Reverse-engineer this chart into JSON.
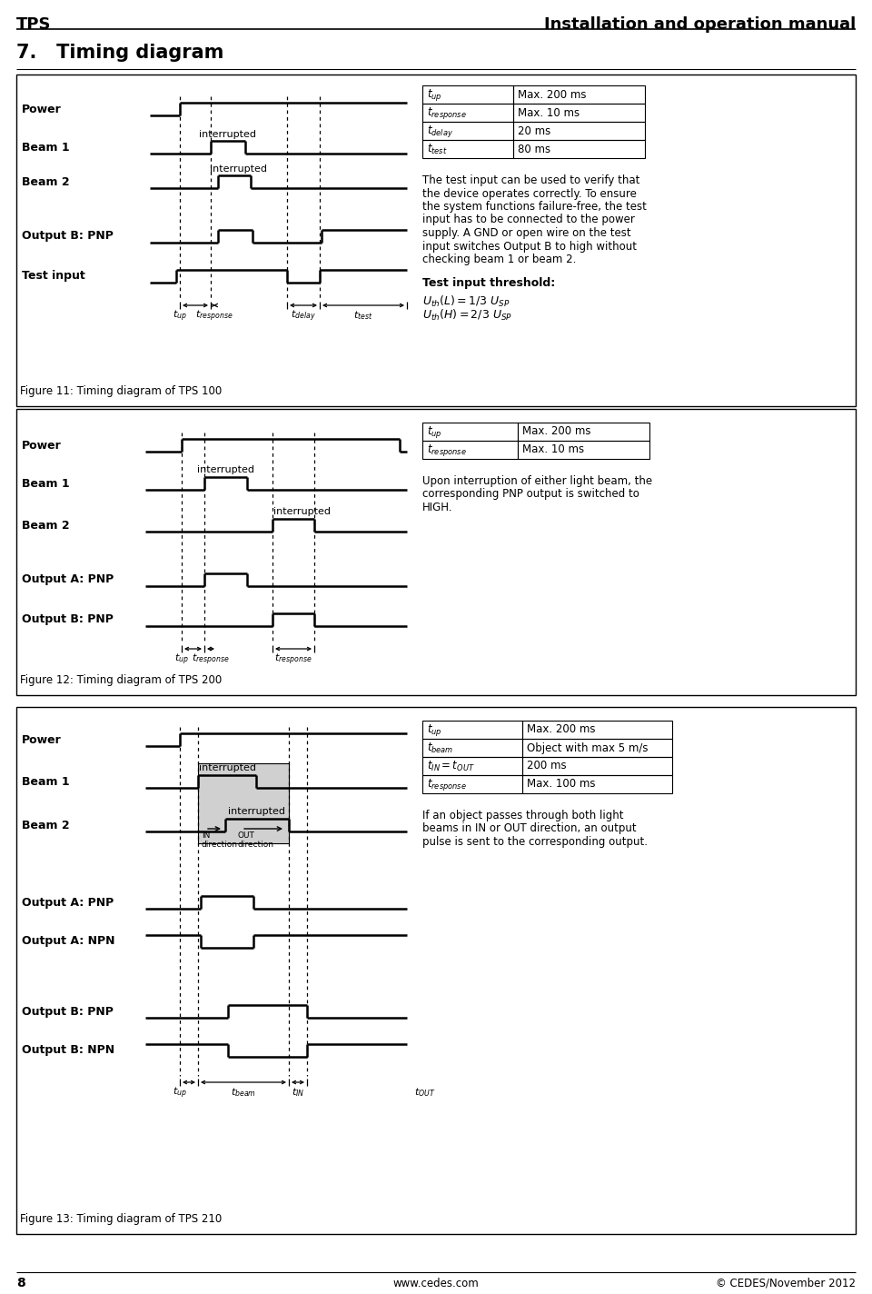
{
  "page_title_left": "TPS",
  "page_title_right": "Installation and operation manual",
  "section_title": "7.   Timing diagram",
  "page_number": "8",
  "website": "www.cedes.com",
  "copyright": "© CEDES/November 2012",
  "fig11_caption": "Figure 11: Timing diagram of TPS 100",
  "fig12_caption": "Figure 12: Timing diagram of TPS 200",
  "fig13_caption": "Figure 13: Timing diagram of TPS 210",
  "text1_lines": [
    "The test input can be used to verify that",
    "the device operates correctly. To ensure",
    "the system functions failure-free, the test",
    "input has to be connected to the power",
    "supply. A GND or open wire on the test",
    "input switches Output B to high without",
    "checking beam 1 or beam 2."
  ],
  "text1b_title": "Test input threshold:",
  "text1b_line1": "U_th(L) = 1/3 U_SP",
  "text1b_line2": "U_th(H) = 2/3 U_SP",
  "text2_lines": [
    "Upon interruption of either light beam, the",
    "corresponding PNP output is switched to",
    "HIGH."
  ],
  "text3_lines": [
    "If an object passes through both light",
    "beams in IN or OUT direction, an output",
    "pulse is sent to the corresponding output."
  ],
  "t1_rows": [
    [
      "t_up",
      "Max. 200 ms"
    ],
    [
      "t_response",
      "Max. 10 ms"
    ],
    [
      "t_delay",
      "20 ms"
    ],
    [
      "t_test",
      "80 ms"
    ]
  ],
  "t2_rows": [
    [
      "t_up",
      "Max. 200 ms"
    ],
    [
      "t_response",
      "Max. 10 ms"
    ]
  ],
  "t3_rows": [
    [
      "t_up",
      "Max. 200 ms"
    ],
    [
      "t_beam",
      "Object with max 5 m/s"
    ],
    [
      "t_IN = t_OUT",
      "200 ms"
    ],
    [
      "t_response",
      "Max. 100 ms"
    ]
  ]
}
